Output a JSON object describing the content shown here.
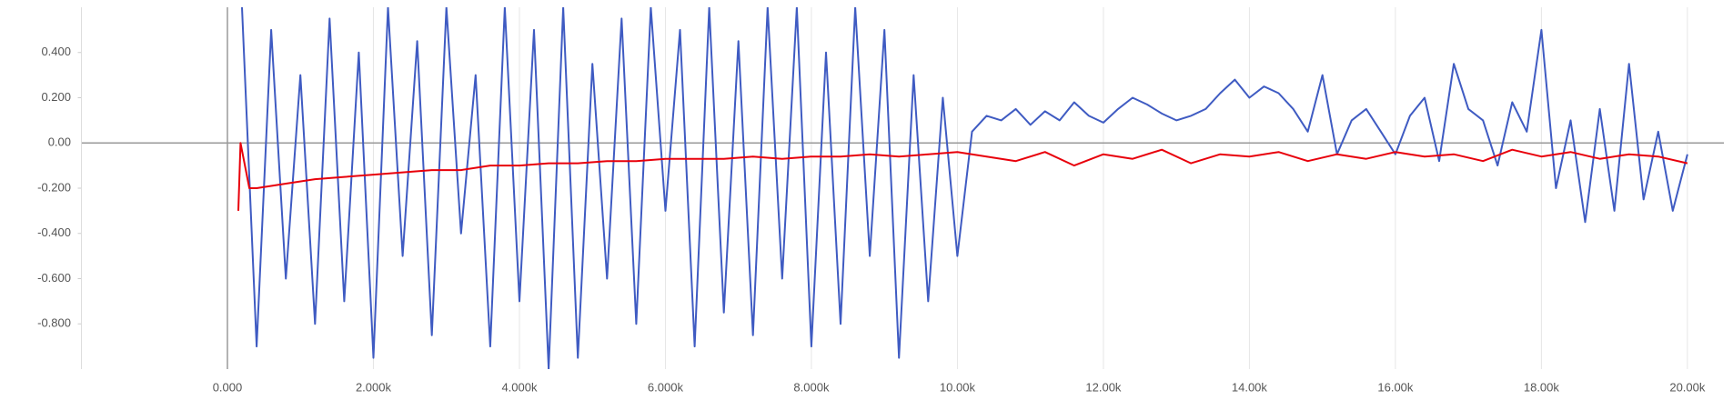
{
  "chart_data": {
    "type": "line",
    "xlim": [
      -2000,
      20500
    ],
    "ylim": [
      -1,
      0.6
    ],
    "xticks": [
      {
        "value": 0,
        "label": "0.000"
      },
      {
        "value": 2000,
        "label": "2.000k"
      },
      {
        "value": 4000,
        "label": "4.000k"
      },
      {
        "value": 6000,
        "label": "6.000k"
      },
      {
        "value": 8000,
        "label": "8.000k"
      },
      {
        "value": 10000,
        "label": "10.00k"
      },
      {
        "value": 12000,
        "label": "12.00k"
      },
      {
        "value": 14000,
        "label": "14.00k"
      },
      {
        "value": 16000,
        "label": "16.00k"
      },
      {
        "value": 18000,
        "label": "18.00k"
      },
      {
        "value": 20000,
        "label": "20.00k"
      }
    ],
    "yticks": [
      {
        "value": 0.4,
        "label": "0.400"
      },
      {
        "value": 0.2,
        "label": "0.200"
      },
      {
        "value": 0,
        "label": "0.00"
      },
      {
        "value": -0.2,
        "label": "-0.200"
      },
      {
        "value": -0.4,
        "label": "-0.400"
      },
      {
        "value": -0.6,
        "label": "-0.600"
      },
      {
        "value": -0.8,
        "label": "-0.800"
      }
    ],
    "grid": "x",
    "series": [
      {
        "color": "#3f5bc2",
        "x": [
          200,
          400,
          600,
          800,
          1000,
          1200,
          1400,
          1600,
          1800,
          2000,
          2200,
          2400,
          2600,
          2800,
          3000,
          3200,
          3400,
          3600,
          3800,
          4000,
          4200,
          4400,
          4600,
          4800,
          5000,
          5200,
          5400,
          5600,
          5800,
          6000,
          6200,
          6400,
          6600,
          6800,
          7000,
          7200,
          7400,
          7600,
          7800,
          8000,
          8200,
          8400,
          8600,
          8800,
          9000,
          9200,
          9400,
          9600,
          9800,
          10000,
          10200,
          10400,
          10600,
          10800,
          11000,
          11200,
          11400,
          11600,
          11800,
          12000,
          12200,
          12400,
          12600,
          12800,
          13000,
          13200,
          13400,
          13600,
          13800,
          14000,
          14200,
          14400,
          14600,
          14800,
          15000,
          15200,
          15400,
          15600,
          15800,
          16000,
          16200,
          16400,
          16600,
          16800,
          17000,
          17200,
          17400,
          17600,
          17800,
          18000,
          18200,
          18400,
          18600,
          18800,
          19000,
          19200,
          19400,
          19600,
          19800,
          20000
        ],
        "values": [
          0.6,
          -0.9,
          0.5,
          -0.6,
          0.3,
          -0.8,
          0.55,
          -0.7,
          0.4,
          -0.95,
          0.6,
          -0.5,
          0.45,
          -0.85,
          0.6,
          -0.4,
          0.3,
          -0.9,
          0.6,
          -0.7,
          0.5,
          -1.0,
          0.6,
          -0.95,
          0.35,
          -0.6,
          0.55,
          -0.8,
          0.6,
          -0.3,
          0.5,
          -0.9,
          0.6,
          -0.75,
          0.45,
          -0.85,
          0.6,
          -0.6,
          0.6,
          -0.9,
          0.4,
          -0.8,
          0.6,
          -0.5,
          0.5,
          -0.95,
          0.3,
          -0.7,
          0.2,
          -0.5,
          0.05,
          0.12,
          0.1,
          0.15,
          0.08,
          0.14,
          0.1,
          0.18,
          0.12,
          0.09,
          0.15,
          0.2,
          0.17,
          0.13,
          0.1,
          0.12,
          0.15,
          0.22,
          0.28,
          0.2,
          0.25,
          0.22,
          0.15,
          0.05,
          0.3,
          -0.05,
          0.1,
          0.15,
          0.05,
          -0.05,
          0.12,
          0.2,
          -0.08,
          0.35,
          0.15,
          0.1,
          -0.1,
          0.18,
          0.05,
          0.5,
          -0.2,
          0.1,
          -0.35,
          0.15,
          -0.3,
          0.35,
          -0.25,
          0.05,
          -0.3,
          -0.05
        ]
      },
      {
        "color": "#e8000b",
        "x": [
          150,
          180,
          300,
          400,
          800,
          1200,
          1600,
          2000,
          2400,
          2800,
          3200,
          3600,
          4000,
          4400,
          4800,
          5200,
          5600,
          6000,
          6400,
          6800,
          7200,
          7600,
          8000,
          8400,
          8800,
          9200,
          9600,
          10000,
          10400,
          10800,
          11200,
          11600,
          12000,
          12400,
          12800,
          13200,
          13600,
          14000,
          14400,
          14800,
          15200,
          15600,
          16000,
          16400,
          16800,
          17200,
          17600,
          18000,
          18400,
          18800,
          19200,
          19600,
          20000
        ],
        "values": [
          -0.3,
          0,
          -0.2,
          -0.2,
          -0.18,
          -0.16,
          -0.15,
          -0.14,
          -0.13,
          -0.12,
          -0.12,
          -0.1,
          -0.1,
          -0.09,
          -0.09,
          -0.08,
          -0.08,
          -0.07,
          -0.07,
          -0.07,
          -0.06,
          -0.07,
          -0.06,
          -0.06,
          -0.05,
          -0.06,
          -0.05,
          -0.04,
          -0.06,
          -0.08,
          -0.04,
          -0.1,
          -0.05,
          -0.07,
          -0.03,
          -0.09,
          -0.05,
          -0.06,
          -0.04,
          -0.08,
          -0.05,
          -0.07,
          -0.04,
          -0.06,
          -0.05,
          -0.08,
          -0.03,
          -0.06,
          -0.04,
          -0.07,
          -0.05,
          -0.06,
          -0.09
        ]
      }
    ]
  }
}
